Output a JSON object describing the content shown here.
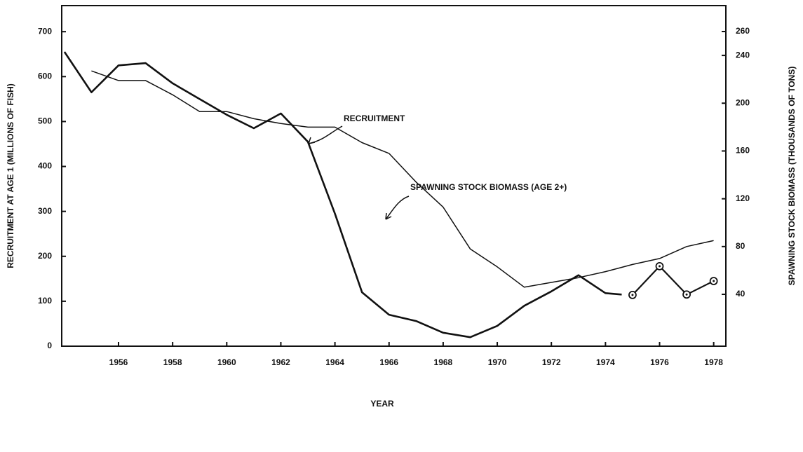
{
  "chart_data": {
    "type": "line",
    "xlabel": "YEAR",
    "ylabel": "RECRUITMENT AT AGE 1 (MILLIONS OF FISH)",
    "y2label": "SPAWNING STOCK BIOMASS (THOUSANDS OF TONS)",
    "annotations": [
      "RECRUITMENT",
      "SPAWNING STOCK BIOMASS (AGE 2+)"
    ],
    "xlim": [
      1953.9,
      1978.45
    ],
    "xticks": [
      1956,
      1958,
      1960,
      1962,
      1964,
      1966,
      1968,
      1970,
      1972,
      1974,
      1976,
      1978
    ],
    "ylim": [
      0,
      758
    ],
    "yticks": [
      0,
      100,
      200,
      300,
      400,
      500,
      600,
      700
    ],
    "y2lim": [
      -3.4,
      281.7
    ],
    "y2ticks": [
      40,
      80,
      120,
      160,
      200,
      240,
      260
    ],
    "grid": false,
    "series": [
      {
        "name": "RECRUITMENT",
        "color": "#111111",
        "width": 2.6,
        "x": [
          1954,
          1955,
          1956,
          1957,
          1958,
          1959,
          1960,
          1961,
          1962,
          1963,
          1964,
          1965,
          1966,
          1967,
          1968,
          1969,
          1970,
          1971,
          1972,
          1973,
          1974,
          1974.6
        ],
        "values": [
          655,
          565,
          625,
          630,
          585,
          550,
          515,
          485,
          518,
          455,
          295,
          120,
          70,
          56,
          30,
          20,
          45,
          90,
          122,
          158,
          118,
          115
        ]
      },
      {
        "color": "#111111",
        "width": 2.2,
        "markers": true,
        "x": [
          1975,
          1976,
          1977,
          1978
        ],
        "values": [
          114,
          178,
          115,
          145
        ]
      },
      {
        "name": "SPAWNING STOCK BIOMASS (AGE 2+)",
        "color": "#111111",
        "width": 1.5,
        "axis": "y2",
        "x": [
          1955,
          1956,
          1957,
          1958,
          1959,
          1960,
          1961,
          1962,
          1963,
          1964,
          1965,
          1966,
          1967,
          1968,
          1969,
          1970,
          1971,
          1972,
          1973,
          1974,
          1975,
          1976,
          1977,
          1978
        ],
        "values": [
          227,
          219,
          219,
          207,
          193,
          193,
          187,
          183,
          180,
          180,
          167,
          158,
          134,
          113,
          78,
          63,
          46,
          50,
          54,
          59,
          65,
          70,
          80,
          85
        ]
      }
    ]
  }
}
